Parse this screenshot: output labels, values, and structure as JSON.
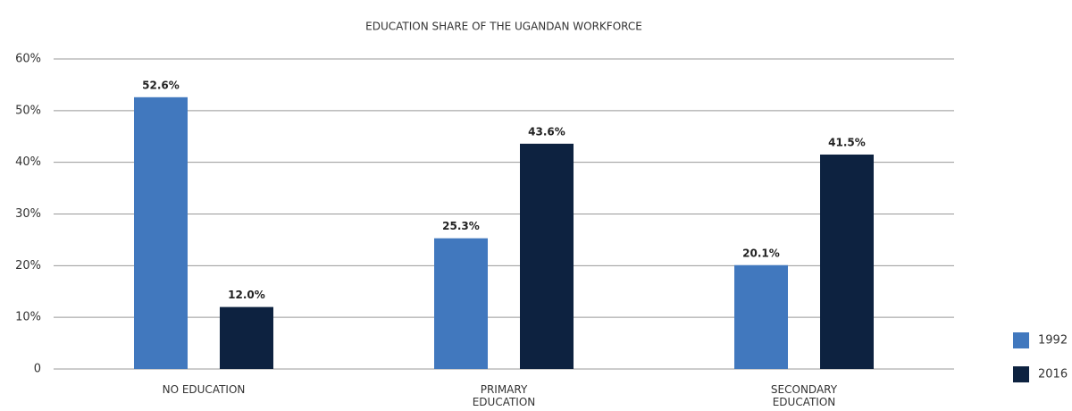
{
  "chart_data": {
    "type": "bar",
    "title": "EDUCATION SHARE OF THE UGANDAN WORKFORCE",
    "categories": [
      "NO EDUCATION",
      "PRIMARY\nEDUCATION",
      "SECONDARY\nEDUCATION"
    ],
    "series": [
      {
        "name": "1992",
        "color": "#4178be",
        "values": [
          52.6,
          25.3,
          20.1
        ],
        "value_labels": [
          "52.6%",
          "25.3%",
          "20.1%"
        ]
      },
      {
        "name": "2016",
        "color": "#0d2240",
        "values": [
          12.0,
          43.6,
          41.5
        ],
        "value_labels": [
          "12.0%",
          "43.6%",
          "41.5%"
        ]
      }
    ],
    "ylim": [
      0,
      60
    ],
    "yticks": [
      0,
      {
        "value": 10,
        "label": "10%"
      },
      {
        "value": 20,
        "label": "20%"
      },
      {
        "value": 30,
        "label": "30%"
      },
      {
        "value": 40,
        "label": "40%"
      },
      {
        "value": 50,
        "label": "50%"
      },
      {
        "value": 60,
        "label": "60%"
      }
    ],
    "grid": true,
    "legend": "bottom-right"
  }
}
